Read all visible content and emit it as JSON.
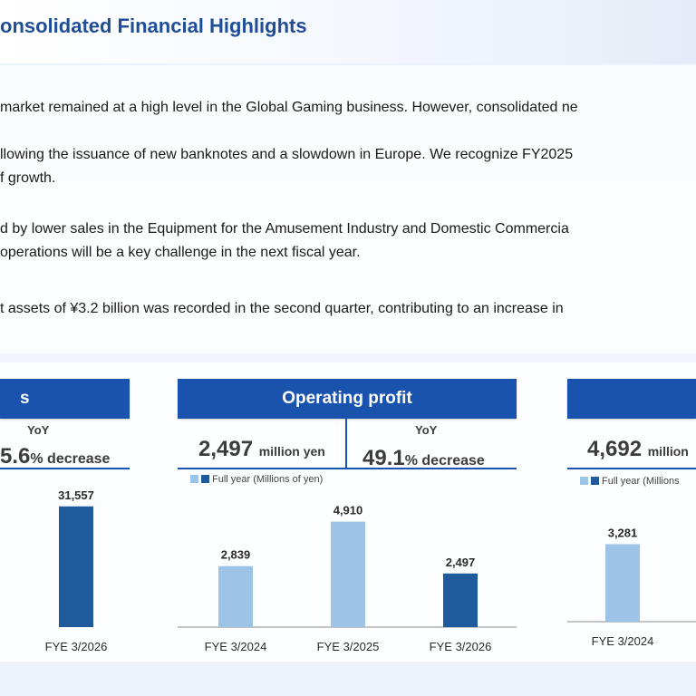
{
  "header": {
    "title": "onsolidated Financial Highlights"
  },
  "paragraphs": [
    {
      "lines": [
        "market remained at a high level in the Global Gaming business. However, consolidated ne",
        "llowing the issuance of new banknotes and a slowdown in Europe.  We recognize FY2025",
        "f growth."
      ]
    },
    {
      "lines": [
        "d by lower sales in the Equipment for the Amusement Industry and Domestic Commercia",
        "operations will be a key challenge in the next fiscal year."
      ]
    },
    {
      "lines": [
        "t assets of ¥3.2 billion was recorded  in the second quarter, contributing to an increase in"
      ]
    }
  ],
  "cards": {
    "left": {
      "title": "s",
      "yoy_label": "YoY",
      "yoy_value": "5.6",
      "yoy_unit": "% decrease"
    },
    "middle": {
      "title": "Operating profit",
      "kpi_value": "2,497",
      "kpi_unit": "million yen",
      "yoy_label": "YoY",
      "yoy_value": "49.1",
      "yoy_unit": "% decrease",
      "legend": "Full year (Millions of yen)"
    },
    "right": {
      "kpi_value": "4,692",
      "kpi_unit": "million",
      "legend": "Full year (Millions"
    }
  },
  "colors": {
    "accent": "#1a53ad",
    "bar_light": "#9dc3e6",
    "bar_dark": "#1f5b9c"
  },
  "chart_data": [
    {
      "type": "bar",
      "categories": [
        "FYE 3/2026"
      ],
      "values": [
        31557
      ],
      "data_labels": [
        "31,557"
      ],
      "ylim": [
        0,
        36000
      ]
    },
    {
      "type": "bar",
      "title": "Operating profit",
      "categories": [
        "FYE 3/2024",
        "FYE 3/2025",
        "FYE 3/2026"
      ],
      "values": [
        2839,
        4910,
        2497
      ],
      "data_labels": [
        "2,839",
        "4,910",
        "2,497"
      ],
      "legend": "Full year (Millions of yen)",
      "ylim": [
        0,
        6200
      ]
    },
    {
      "type": "bar",
      "categories": [
        "FYE 3/2024"
      ],
      "values": [
        3281
      ],
      "data_labels": [
        "3,281"
      ],
      "ylim": [
        0,
        5600
      ]
    }
  ]
}
